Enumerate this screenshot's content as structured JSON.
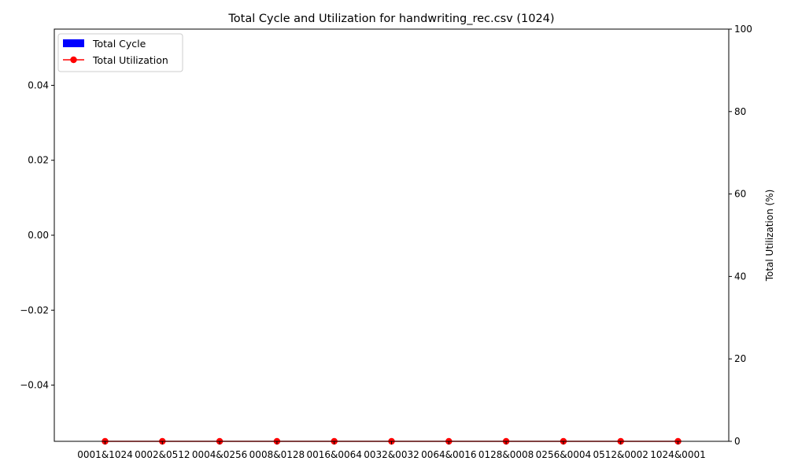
{
  "chart_data": {
    "type": "bar",
    "title": "Total Cycle and Utilization for handwriting_rec.csv (1024)",
    "xlabel": "",
    "categories": [
      "0001&1024",
      "0002&0512",
      "0004&0256",
      "0008&0128",
      "0016&0064",
      "0032&0032",
      "0064&0016",
      "0128&0008",
      "0256&0004",
      "0512&0002",
      "1024&0001"
    ],
    "series": [
      {
        "name": "Total Cycle",
        "kind": "bar",
        "axis": "left",
        "color": "#0000ff",
        "values": [
          0,
          0,
          0,
          0,
          0,
          0,
          0,
          0,
          0,
          0,
          0
        ]
      },
      {
        "name": "Total Utilization",
        "kind": "line",
        "axis": "right",
        "color": "#ff0000",
        "marker": "circle",
        "values": [
          0,
          0,
          0,
          0,
          0,
          0,
          0,
          0,
          0,
          0,
          0
        ]
      }
    ],
    "y_left": {
      "label": "",
      "range": [
        -0.055,
        0.055
      ],
      "ticks": [
        -0.04,
        -0.02,
        0.0,
        0.02,
        0.04
      ],
      "tick_labels": [
        "−0.04",
        "−0.02",
        "0.00",
        "0.02",
        "0.04"
      ]
    },
    "y_right": {
      "label": "Total Utilization (%)",
      "range": [
        0,
        100
      ],
      "ticks": [
        0,
        20,
        40,
        60,
        80,
        100
      ],
      "tick_labels": [
        "0",
        "20",
        "40",
        "60",
        "80",
        "100"
      ]
    },
    "grid": false,
    "legend_position": "top-left"
  }
}
